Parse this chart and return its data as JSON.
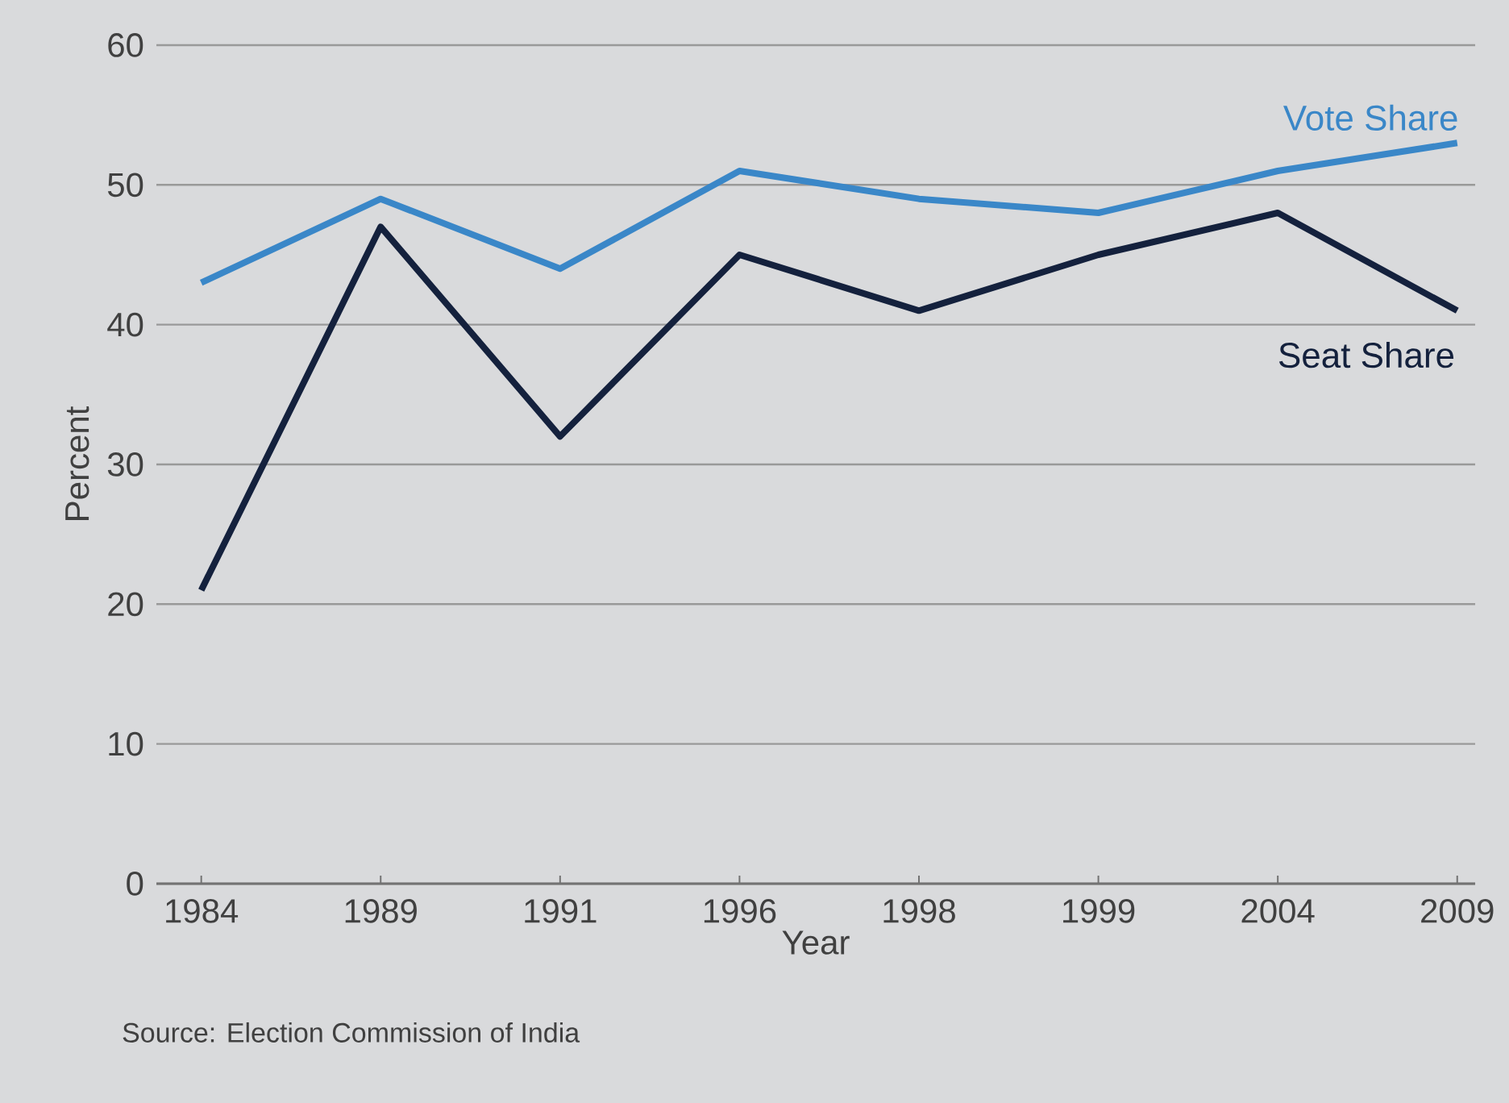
{
  "chart_data": {
    "type": "line",
    "xlabel": "Year",
    "ylabel": "Percent",
    "categories": [
      "1984",
      "1989",
      "1991",
      "1996",
      "1998",
      "1999",
      "2004",
      "2009"
    ],
    "series": [
      {
        "name": "Vote Share",
        "color": "#3a87c8",
        "values": [
          43,
          49,
          44,
          51,
          49,
          48,
          51,
          53
        ]
      },
      {
        "name": "Seat Share",
        "color": "#14213d",
        "values": [
          21,
          47,
          32,
          45,
          41,
          45,
          48,
          41
        ]
      }
    ],
    "ylim": [
      0,
      60
    ],
    "yticks": [
      0,
      10,
      20,
      30,
      40,
      50,
      60
    ],
    "grid": "y",
    "legend": false,
    "marker": "none",
    "line_style": "solid",
    "annotations": [
      "Source: Election Commission of India"
    ]
  }
}
